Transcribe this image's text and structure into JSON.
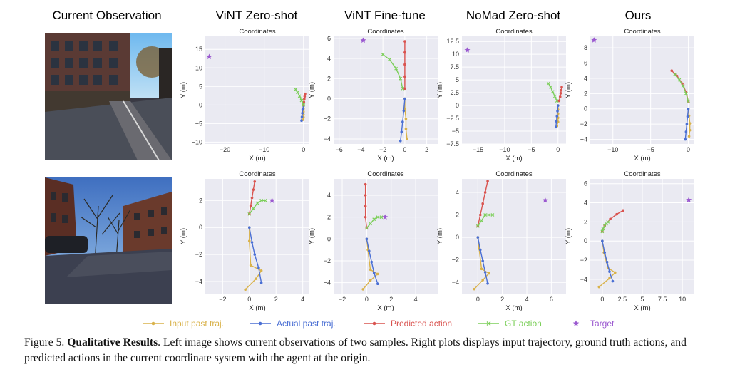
{
  "column_titles": [
    "Current Observation",
    "ViNT Zero-shot",
    "ViNT Fine-tune",
    "NoMad Zero-shot",
    "Ours"
  ],
  "legend": [
    {
      "label": "Input past traj.",
      "color": "#d9b24a",
      "marker": "dot"
    },
    {
      "label": "Actual past traj.",
      "color": "#4a6fd4",
      "marker": "dot"
    },
    {
      "label": "Predicted action",
      "color": "#d9534f",
      "marker": "dot"
    },
    {
      "label": "GT action",
      "color": "#7ccf5a",
      "marker": "x"
    },
    {
      "label": "Target",
      "color": "#9b59d0",
      "marker": "star"
    }
  ],
  "caption": {
    "prefix": "Figure 5. ",
    "bold": "Qualitative Results",
    "text": ". Left image shows current observations of two samples. Right plots displays input trajectory, ground truth actions, and predicted actions in the current coordinate system with the agent at the origin."
  },
  "chart_data": [
    {
      "type": "line",
      "title": "Coordinates",
      "xlabel": "X (m)",
      "ylabel": "Y (m)",
      "xlim": [
        -25,
        1.5
      ],
      "ylim": [
        -10.5,
        18.5
      ],
      "xticks": [
        -20,
        -10,
        0
      ],
      "yticks": [
        -10,
        -5,
        0,
        5,
        10,
        15
      ],
      "series": [
        {
          "name": "Input past traj.",
          "x": [
            0,
            0,
            0,
            0,
            0,
            -0.2
          ],
          "y": [
            0,
            -1,
            -1.8,
            -2.6,
            -3.3,
            -4.0
          ]
        },
        {
          "name": "Actual past traj.",
          "x": [
            0,
            -0.2,
            -0.3,
            -0.4,
            -0.5
          ],
          "y": [
            0,
            -1.2,
            -2.2,
            -3.2,
            -4.2
          ]
        },
        {
          "name": "Predicted action",
          "x": [
            0,
            0.1,
            0.2,
            0.3,
            0.4
          ],
          "y": [
            0,
            0.8,
            1.6,
            2.3,
            3.0
          ]
        },
        {
          "name": "GT action",
          "x": [
            0,
            -0.5,
            -1.0,
            -1.5,
            -2.0
          ],
          "y": [
            0,
            1.2,
            2.4,
            3.4,
            4.2
          ]
        },
        {
          "name": "Target",
          "x": [
            -24
          ],
          "y": [
            13
          ]
        }
      ]
    },
    {
      "type": "line",
      "title": "Coordinates",
      "xlabel": "X (m)",
      "ylabel": "Y (m)",
      "xlim": [
        -6.5,
        3
      ],
      "ylim": [
        -4.5,
        6.2
      ],
      "xticks": [
        -6,
        -4,
        -2,
        0,
        2
      ],
      "yticks": [
        -4,
        -2,
        0,
        2,
        4,
        6
      ],
      "series": [
        {
          "name": "Input past traj.",
          "x": [
            0,
            0,
            0.1,
            0.1,
            0.2
          ],
          "y": [
            0,
            -1.0,
            -2.0,
            -3.0,
            -4.0
          ]
        },
        {
          "name": "Actual past traj.",
          "x": [
            0,
            -0.1,
            -0.2,
            -0.3,
            -0.4
          ],
          "y": [
            0,
            -1.2,
            -2.3,
            -3.3,
            -4.2
          ]
        },
        {
          "name": "Predicted action",
          "x": [
            0,
            0,
            0,
            0,
            0
          ],
          "y": [
            1,
            2.2,
            3.4,
            4.6,
            5.7
          ]
        },
        {
          "name": "GT action",
          "x": [
            -0.2,
            -0.4,
            -0.8,
            -1.4,
            -2.0
          ],
          "y": [
            1,
            2,
            3,
            3.9,
            4.4
          ]
        },
        {
          "name": "Target",
          "x": [
            -3.8
          ],
          "y": [
            5.8
          ]
        }
      ]
    },
    {
      "type": "line",
      "title": "Coordinates",
      "xlabel": "X (m)",
      "ylabel": "Y (m)",
      "xlim": [
        -18,
        1.5
      ],
      "ylim": [
        -7.5,
        13.5
      ],
      "xticks": [
        -15,
        -10,
        -5,
        0
      ],
      "yticks": [
        -7.5,
        -5,
        -2.5,
        0,
        2.5,
        5,
        7.5,
        10,
        12.5
      ],
      "series": [
        {
          "name": "Input past traj.",
          "x": [
            0,
            0,
            0,
            0,
            0,
            -0.2
          ],
          "y": [
            0,
            -0.8,
            -1.6,
            -2.4,
            -3.2,
            -4.0
          ]
        },
        {
          "name": "Actual past traj.",
          "x": [
            0,
            -0.1,
            -0.2,
            -0.3,
            -0.4
          ],
          "y": [
            0,
            -1.1,
            -2.1,
            -3.1,
            -4.2
          ]
        },
        {
          "name": "Predicted action",
          "x": [
            0.2,
            0.4,
            0.5,
            0.6,
            0.7
          ],
          "y": [
            0.9,
            1.7,
            2.4,
            3.0,
            3.6
          ]
        },
        {
          "name": "GT action",
          "x": [
            -0.2,
            -0.6,
            -1.0,
            -1.4,
            -1.8
          ],
          "y": [
            0.9,
            1.8,
            2.7,
            3.6,
            4.3
          ]
        },
        {
          "name": "Target",
          "x": [
            -17
          ],
          "y": [
            10.8
          ]
        }
      ]
    },
    {
      "type": "line",
      "title": "Coordinates",
      "xlabel": "X (m)",
      "ylabel": "Y (m)",
      "xlim": [
        -13,
        0.8
      ],
      "ylim": [
        -4.6,
        9.5
      ],
      "xticks": [
        -10,
        -5,
        0
      ],
      "yticks": [
        -4,
        -2,
        0,
        2,
        4,
        6,
        8
      ],
      "series": [
        {
          "name": "Input past traj.",
          "x": [
            0,
            0.1,
            0.2,
            0.2,
            0.1
          ],
          "y": [
            0,
            -0.9,
            -1.9,
            -2.8,
            -3.6
          ]
        },
        {
          "name": "Actual past traj.",
          "x": [
            0,
            -0.1,
            -0.2,
            -0.3,
            -0.4
          ],
          "y": [
            0,
            -1.0,
            -2.0,
            -3.0,
            -4.0
          ]
        },
        {
          "name": "Predicted action",
          "x": [
            0,
            -0.3,
            -0.8,
            -1.5,
            -2.2
          ],
          "y": [
            1,
            2.2,
            3.3,
            4.3,
            5.0
          ]
        },
        {
          "name": "GT action",
          "x": [
            0,
            -0.3,
            -0.7,
            -1.2,
            -1.8
          ],
          "y": [
            1,
            2.0,
            3.0,
            3.8,
            4.5
          ]
        },
        {
          "name": "Target",
          "x": [
            -12.5
          ],
          "y": [
            9
          ]
        }
      ]
    },
    {
      "type": "line",
      "title": "Coordinates",
      "xlabel": "X (m)",
      "ylabel": "Y (m)",
      "xlim": [
        -3.3,
        4.5
      ],
      "ylim": [
        -4.9,
        3.6
      ],
      "xticks": [
        -2,
        0,
        2,
        4
      ],
      "yticks": [
        -4,
        -2,
        0,
        2
      ],
      "series": [
        {
          "name": "Input past traj.",
          "x": [
            0,
            0,
            0.1,
            0.9,
            0.5,
            -0.3
          ],
          "y": [
            0,
            -1,
            -2.8,
            -3.2,
            -3.8,
            -4.6
          ]
        },
        {
          "name": "Actual past traj.",
          "x": [
            0,
            0.2,
            0.4,
            0.7,
            0.9
          ],
          "y": [
            0,
            -1.1,
            -2.0,
            -3.0,
            -4.1
          ]
        },
        {
          "name": "Predicted action",
          "x": [
            0,
            0.1,
            0.2,
            0.3,
            0.4
          ],
          "y": [
            1,
            1.6,
            2.2,
            2.8,
            3.4
          ]
        },
        {
          "name": "GT action",
          "x": [
            0,
            0.3,
            0.6,
            0.9,
            1.2
          ],
          "y": [
            1,
            1.4,
            1.8,
            2.0,
            2.0
          ]
        },
        {
          "name": "Target",
          "x": [
            1.7
          ],
          "y": [
            2
          ]
        }
      ]
    },
    {
      "type": "line",
      "title": "Coordinates",
      "xlabel": "X (m)",
      "ylabel": "Y (m)",
      "xlim": [
        -2.7,
        5.8
      ],
      "ylim": [
        -5,
        5.5
      ],
      "xticks": [
        -2,
        0,
        2,
        4
      ],
      "yticks": [
        -4,
        -2,
        0,
        2,
        4
      ],
      "series": [
        {
          "name": "Input past traj.",
          "x": [
            0,
            0.1,
            0.3,
            0.9,
            0.3,
            -0.3
          ],
          "y": [
            0,
            -1,
            -2.8,
            -3.2,
            -3.8,
            -4.6
          ]
        },
        {
          "name": "Actual past traj.",
          "x": [
            0,
            0.2,
            0.4,
            0.6,
            0.9
          ],
          "y": [
            0,
            -1.1,
            -2.1,
            -3.1,
            -4.1
          ]
        },
        {
          "name": "Predicted action",
          "x": [
            0,
            -0.1,
            -0.1,
            -0.1,
            -0.1
          ],
          "y": [
            1,
            2,
            3,
            4,
            5
          ]
        },
        {
          "name": "GT action",
          "x": [
            0,
            0.3,
            0.6,
            0.9,
            1.2
          ],
          "y": [
            1,
            1.4,
            1.8,
            2.0,
            2.0
          ]
        },
        {
          "name": "Target",
          "x": [
            1.5
          ],
          "y": [
            2
          ]
        }
      ]
    },
    {
      "type": "line",
      "title": "Coordinates",
      "xlabel": "X (m)",
      "ylabel": "Y (m)",
      "xlim": [
        -1.3,
        7.2
      ],
      "ylim": [
        -5,
        5.2
      ],
      "xticks": [
        0,
        2,
        4,
        6
      ],
      "yticks": [
        -4,
        -2,
        0,
        2,
        4
      ],
      "series": [
        {
          "name": "Input past traj.",
          "x": [
            0,
            0.1,
            0.3,
            0.9,
            0.4,
            -0.3
          ],
          "y": [
            0,
            -1,
            -2.8,
            -3.2,
            -3.8,
            -4.6
          ]
        },
        {
          "name": "Actual past traj.",
          "x": [
            0,
            0.2,
            0.4,
            0.6,
            0.8
          ],
          "y": [
            0,
            -1.1,
            -2.1,
            -3.1,
            -4.1
          ]
        },
        {
          "name": "Predicted action",
          "x": [
            0,
            0.2,
            0.4,
            0.6,
            0.8
          ],
          "y": [
            1,
            2,
            3,
            4,
            5
          ]
        },
        {
          "name": "GT action",
          "x": [
            0,
            0.3,
            0.6,
            0.9,
            1.2
          ],
          "y": [
            1,
            1.5,
            2.0,
            2.0,
            2.0
          ]
        },
        {
          "name": "Target",
          "x": [
            5.5
          ],
          "y": [
            3.3
          ]
        }
      ]
    },
    {
      "type": "line",
      "title": "Coordinates",
      "xlabel": "X (m)",
      "ylabel": "Y (m)",
      "xlim": [
        -1.5,
        11.5
      ],
      "ylim": [
        -5.5,
        6.5
      ],
      "xticks": [
        0.0,
        2.5,
        5.0,
        7.5,
        10.0
      ],
      "yticks": [
        -4,
        -2,
        0,
        2,
        4,
        6
      ],
      "series": [
        {
          "name": "Input past traj.",
          "x": [
            0,
            0.2,
            0.7,
            1.6,
            0.9,
            -0.4
          ],
          "y": [
            0,
            -1.2,
            -2.8,
            -3.3,
            -3.9,
            -4.8
          ]
        },
        {
          "name": "Actual past traj.",
          "x": [
            0,
            0.3,
            0.6,
            0.9,
            1.3
          ],
          "y": [
            0,
            -1.2,
            -2.2,
            -3.2,
            -4.2
          ]
        },
        {
          "name": "Predicted action",
          "x": [
            0,
            0.3,
            1.0,
            1.8,
            2.6
          ],
          "y": [
            1,
            1.6,
            2.3,
            2.8,
            3.2
          ]
        },
        {
          "name": "GT action",
          "x": [
            0,
            0.1,
            0.3,
            0.5,
            0.7
          ],
          "y": [
            1,
            1.3,
            1.6,
            1.8,
            2.0
          ]
        },
        {
          "name": "Target",
          "x": [
            10.8
          ],
          "y": [
            4.3
          ]
        }
      ]
    }
  ]
}
